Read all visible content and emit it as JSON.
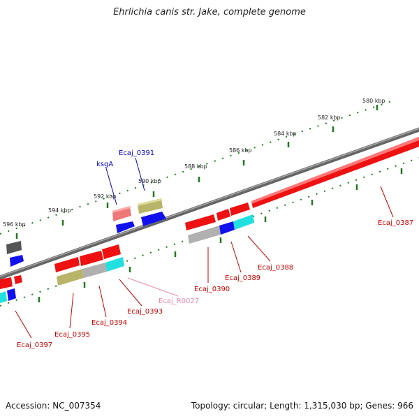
{
  "title": "Ehrlichia canis str. Jake, complete genome",
  "footer": {
    "accession": "Accession: NC_007354",
    "summary": "Topology: circular; Length: 1,315,030 bp; Genes: 966"
  },
  "colors": {
    "red": "#ee1111",
    "blue": "#1111ee",
    "cyan": "#22e0e0",
    "olive": "#b8b46a",
    "grey": "#b0b0b0",
    "darkgrey": "#555555",
    "pink": "#ee88aa",
    "ticks": "#227722",
    "label_red": "#cc0000",
    "label_blue": "#0000cc",
    "label_pink": "#ee88aa"
  },
  "scale_labels": [
    {
      "text": "580 kbp",
      "kbp": 580
    },
    {
      "text": "582 kbp",
      "kbp": 582
    },
    {
      "text": "584 kbp",
      "kbp": 584
    },
    {
      "text": "586 kbp",
      "kbp": 586
    },
    {
      "text": "588 kbp",
      "kbp": 588
    },
    {
      "text": "590 kbp",
      "kbp": 590
    },
    {
      "text": "592 kbp",
      "kbp": 592
    },
    {
      "text": "594 kbp",
      "kbp": 594
    },
    {
      "text": "596 kbp",
      "kbp": 596
    }
  ],
  "gene_labels": [
    {
      "text": "ksgA",
      "color": "label_blue"
    },
    {
      "text": "Ecaj_0391",
      "color": "label_blue"
    },
    {
      "text": "Ecaj_0387",
      "color": "label_red"
    },
    {
      "text": "Ecaj_0388",
      "color": "label_red"
    },
    {
      "text": "Ecaj_0389",
      "color": "label_red"
    },
    {
      "text": "Ecaj_0390",
      "color": "label_red"
    },
    {
      "text": "Ecaj_R0027",
      "color": "label_pink"
    },
    {
      "text": "Ecaj_0393",
      "color": "label_red"
    },
    {
      "text": "Ecaj_0394",
      "color": "label_red"
    },
    {
      "text": "Ecaj_0395",
      "color": "label_red"
    },
    {
      "text": "Ecaj_0397",
      "color": "label_red"
    }
  ]
}
